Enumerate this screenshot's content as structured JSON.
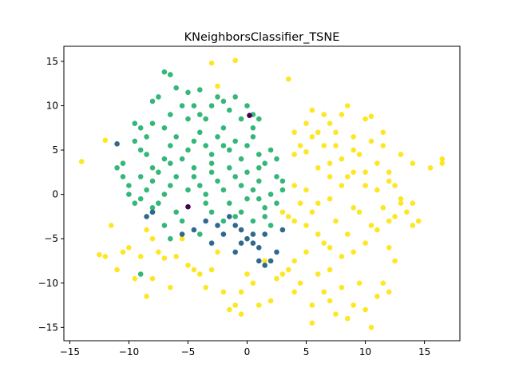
{
  "chart_data": {
    "type": "scatter",
    "title": "KNeighborsClassifier_TSNE",
    "xlabel": "",
    "ylabel": "",
    "xlim": [
      -15.5,
      18.0
    ],
    "ylim": [
      -16.5,
      16.7
    ],
    "xticks": [
      -15,
      -10,
      -5,
      0,
      5,
      10,
      15
    ],
    "yticks": [
      -15,
      -10,
      -5,
      0,
      5,
      10,
      15
    ],
    "grid": false,
    "legend": "none",
    "series": [
      {
        "color": "#fde725",
        "points": [
          [
            -14.0,
            3.7
          ],
          [
            -12.0,
            6.1
          ],
          [
            -12.5,
            -6.8
          ],
          [
            -12.0,
            -7.0
          ],
          [
            -11.5,
            -3.5
          ],
          [
            -11.0,
            -8.5
          ],
          [
            -10.5,
            -6.5
          ],
          [
            -10.0,
            -6.0
          ],
          [
            -9.5,
            -9.5
          ],
          [
            -9.0,
            -7.0
          ],
          [
            -8.5,
            -4.0
          ],
          [
            -8.5,
            -11.5
          ],
          [
            -8.0,
            -9.5
          ],
          [
            -8.0,
            -5.0
          ],
          [
            -7.5,
            -6.5
          ],
          [
            -7.0,
            -7.2
          ],
          [
            -6.5,
            -10.5
          ],
          [
            -6.0,
            -7.0
          ],
          [
            -5.5,
            -5.0
          ],
          [
            -5.0,
            -8.0
          ],
          [
            -4.5,
            -8.5
          ],
          [
            -4.0,
            -9.0
          ],
          [
            -3.5,
            -10.5
          ],
          [
            -3.0,
            -8.5
          ],
          [
            -2.5,
            -6.5
          ],
          [
            -2.0,
            -11.0
          ],
          [
            -1.5,
            -13.0
          ],
          [
            -1.0,
            -12.5
          ],
          [
            -0.5,
            -11.0
          ],
          [
            -0.5,
            -13.5
          ],
          [
            0.0,
            -9.0
          ],
          [
            0.5,
            -10.0
          ],
          [
            1.0,
            -12.5
          ],
          [
            1.5,
            -7.5
          ],
          [
            2.0,
            -12.0
          ],
          [
            2.5,
            -9.5
          ],
          [
            3.0,
            -9.0
          ],
          [
            3.5,
            -8.5
          ],
          [
            4.0,
            -7.5
          ],
          [
            4.0,
            -11.0
          ],
          [
            4.5,
            -10.0
          ],
          [
            5.0,
            -6.5
          ],
          [
            5.5,
            -12.5
          ],
          [
            5.5,
            -14.5
          ],
          [
            6.0,
            -9.0
          ],
          [
            6.5,
            -11.0
          ],
          [
            7.0,
            -12.0
          ],
          [
            7.0,
            -8.5
          ],
          [
            7.5,
            -13.5
          ],
          [
            8.0,
            -10.5
          ],
          [
            8.5,
            -14.0
          ],
          [
            9.0,
            -12.5
          ],
          [
            9.5,
            -10.0
          ],
          [
            10.0,
            -13.0
          ],
          [
            10.5,
            -15.0
          ],
          [
            11.0,
            -11.5
          ],
          [
            11.5,
            -10.0
          ],
          [
            12.0,
            -11.0
          ],
          [
            12.5,
            -7.5
          ],
          [
            12.0,
            -6.0
          ],
          [
            -3.0,
            14.8
          ],
          [
            -1.0,
            15.1
          ],
          [
            -2.5,
            12.2
          ],
          [
            3.5,
            13.0
          ],
          [
            4.0,
            7.0
          ],
          [
            4.5,
            5.5
          ],
          [
            4.0,
            4.5
          ],
          [
            5.0,
            8.0
          ],
          [
            5.5,
            9.5
          ],
          [
            6.0,
            7.0
          ],
          [
            6.5,
            5.5
          ],
          [
            7.0,
            8.0
          ],
          [
            7.5,
            5.5
          ],
          [
            8.0,
            9.0
          ],
          [
            8.5,
            10.0
          ],
          [
            9.0,
            6.5
          ],
          [
            9.5,
            4.5
          ],
          [
            10.0,
            8.5
          ],
          [
            10.5,
            6.0
          ],
          [
            11.0,
            3.5
          ],
          [
            11.5,
            5.5
          ],
          [
            12.0,
            2.5
          ],
          [
            13.0,
            4.5
          ],
          [
            14.0,
            3.5
          ],
          [
            15.5,
            3.0
          ],
          [
            16.5,
            4.0
          ],
          [
            16.5,
            3.5
          ],
          [
            5.0,
            4.8
          ],
          [
            6.0,
            3.0
          ],
          [
            7.0,
            2.0
          ],
          [
            8.0,
            4.0
          ],
          [
            9.0,
            2.5
          ],
          [
            10.0,
            1.0
          ],
          [
            11.0,
            0.5
          ],
          [
            12.0,
            1.5
          ],
          [
            13.0,
            -0.5
          ],
          [
            14.0,
            -1.0
          ],
          [
            14.5,
            -3.0
          ],
          [
            13.5,
            -2.0
          ],
          [
            12.5,
            -2.5
          ],
          [
            11.5,
            -1.5
          ],
          [
            10.5,
            -3.5
          ],
          [
            9.5,
            -2.0
          ],
          [
            8.5,
            -4.5
          ],
          [
            7.5,
            -3.0
          ],
          [
            6.5,
            -5.5
          ],
          [
            5.5,
            -2.0
          ],
          [
            4.5,
            -1.0
          ],
          [
            3.5,
            -2.5
          ],
          [
            3.0,
            -2.0
          ],
          [
            4.0,
            1.0
          ],
          [
            5.0,
            0.5
          ],
          [
            6.0,
            -1.0
          ],
          [
            7.0,
            -0.5
          ],
          [
            8.0,
            1.0
          ],
          [
            9.0,
            -1.5
          ],
          [
            10.0,
            -5.5
          ],
          [
            9.0,
            -6.5
          ],
          [
            8.0,
            -7.0
          ],
          [
            7.0,
            -6.0
          ],
          [
            6.0,
            -4.5
          ],
          [
            5.0,
            -3.5
          ],
          [
            4.0,
            -3.0
          ],
          [
            11.0,
            -4.0
          ],
          [
            12.0,
            -3.0
          ],
          [
            13.0,
            -1.0
          ],
          [
            14.0,
            -3.5
          ],
          [
            10.5,
            8.8
          ],
          [
            6.5,
            9.0
          ],
          [
            7.5,
            7.0
          ],
          [
            5.5,
            6.5
          ],
          [
            9.0,
            5.0
          ],
          [
            11.5,
            7.0
          ],
          [
            12.5,
            1.0
          ],
          [
            10.0,
            2.5
          ],
          [
            8.5,
            2.0
          ],
          [
            7.0,
            3.5
          ]
        ]
      },
      {
        "color": "#35b779",
        "points": [
          [
            -11.0,
            3.0
          ],
          [
            -10.5,
            2.0
          ],
          [
            -10.0,
            1.0
          ],
          [
            -9.5,
            8.0
          ],
          [
            -9.0,
            7.5
          ],
          [
            -8.5,
            6.5
          ],
          [
            -8.0,
            10.5
          ],
          [
            -7.5,
            11.0
          ],
          [
            -7.0,
            13.8
          ],
          [
            -6.5,
            13.5
          ],
          [
            -6.5,
            9.0
          ],
          [
            -6.0,
            12.0
          ],
          [
            -5.5,
            10.0
          ],
          [
            -5.0,
            11.5
          ],
          [
            -4.5,
            10.0
          ],
          [
            -4.0,
            9.0
          ],
          [
            -3.5,
            8.5
          ],
          [
            -3.0,
            10.0
          ],
          [
            -2.5,
            11.0
          ],
          [
            -2.0,
            10.5
          ],
          [
            -1.5,
            9.5
          ],
          [
            -1.0,
            11.0
          ],
          [
            -0.5,
            8.5
          ],
          [
            0.0,
            10.0
          ],
          [
            0.5,
            9.0
          ],
          [
            1.0,
            8.5
          ],
          [
            -9.5,
            6.0
          ],
          [
            -9.0,
            5.0
          ],
          [
            -8.5,
            4.5
          ],
          [
            -8.0,
            3.0
          ],
          [
            -7.5,
            2.5
          ],
          [
            -7.0,
            4.0
          ],
          [
            -6.5,
            5.5
          ],
          [
            -6.0,
            6.5
          ],
          [
            -5.5,
            4.0
          ],
          [
            -5.0,
            5.0
          ],
          [
            -4.5,
            6.0
          ],
          [
            -4.0,
            7.0
          ],
          [
            -3.5,
            5.5
          ],
          [
            -3.0,
            4.5
          ],
          [
            -2.5,
            6.5
          ],
          [
            -2.0,
            7.5
          ],
          [
            -1.5,
            5.0
          ],
          [
            -1.0,
            6.0
          ],
          [
            -0.5,
            4.0
          ],
          [
            0.0,
            5.5
          ],
          [
            0.5,
            6.5
          ],
          [
            1.0,
            4.5
          ],
          [
            1.5,
            3.5
          ],
          [
            2.0,
            5.0
          ],
          [
            2.5,
            2.0
          ],
          [
            3.0,
            1.5
          ],
          [
            -10.0,
            0.0
          ],
          [
            -9.5,
            -1.0
          ],
          [
            -9.0,
            -0.5
          ],
          [
            -8.5,
            0.5
          ],
          [
            -8.0,
            1.5
          ],
          [
            -7.5,
            -1.0
          ],
          [
            -7.0,
            0.0
          ],
          [
            -6.5,
            1.0
          ],
          [
            -6.0,
            -2.0
          ],
          [
            -5.5,
            -3.0
          ],
          [
            -5.0,
            0.5
          ],
          [
            -4.5,
            2.0
          ],
          [
            -4.0,
            1.0
          ],
          [
            -3.5,
            0.0
          ],
          [
            -3.0,
            2.5
          ],
          [
            -2.5,
            1.5
          ],
          [
            -2.0,
            0.5
          ],
          [
            -1.5,
            -1.0
          ],
          [
            -1.0,
            2.0
          ],
          [
            -0.5,
            1.0
          ],
          [
            0.0,
            -0.5
          ],
          [
            0.5,
            0.5
          ],
          [
            1.0,
            1.5
          ],
          [
            1.5,
            -1.5
          ],
          [
            2.0,
            0.0
          ],
          [
            2.5,
            -1.0
          ],
          [
            3.0,
            0.5
          ],
          [
            -9.0,
            -9.0
          ],
          [
            -8.0,
            -2.0
          ],
          [
            -7.0,
            -3.5
          ],
          [
            -6.5,
            -5.0
          ],
          [
            -4.0,
            -4.5
          ],
          [
            -3.0,
            -2.0
          ],
          [
            -2.0,
            -3.0
          ],
          [
            -1.0,
            -2.5
          ],
          [
            0.5,
            -3.0
          ],
          [
            1.5,
            -2.5
          ],
          [
            2.0,
            -3.5
          ],
          [
            -10.5,
            3.5
          ],
          [
            -8.0,
            8.0
          ],
          [
            -7.0,
            7.5
          ],
          [
            -5.0,
            8.5
          ],
          [
            -4.0,
            11.8
          ],
          [
            -3.0,
            3.5
          ],
          [
            -1.5,
            3.0
          ],
          [
            0.0,
            2.5
          ],
          [
            1.0,
            3.0
          ],
          [
            2.5,
            4.0
          ],
          [
            -6.0,
            2.0
          ],
          [
            -4.5,
            3.0
          ],
          [
            -2.0,
            5.5
          ],
          [
            0.5,
            7.5
          ],
          [
            -9.0,
            2.0
          ],
          [
            -8.0,
            -1.5
          ],
          [
            -6.5,
            3.5
          ],
          [
            -3.5,
            -1.0
          ],
          [
            -0.5,
            -2.0
          ],
          [
            1.0,
            -0.5
          ]
        ]
      },
      {
        "color": "#31688e",
        "points": [
          [
            -8.5,
            -2.5
          ],
          [
            -8.0,
            -2.0
          ],
          [
            -5.5,
            -4.5
          ],
          [
            -4.5,
            -4.0
          ],
          [
            -3.5,
            -3.0
          ],
          [
            -3.0,
            -5.5
          ],
          [
            -2.5,
            -3.5
          ],
          [
            -2.0,
            -4.5
          ],
          [
            -1.5,
            -2.5
          ],
          [
            -1.0,
            -3.5
          ],
          [
            -1.0,
            -6.5
          ],
          [
            -0.5,
            -4.0
          ],
          [
            0.0,
            -5.0
          ],
          [
            0.5,
            -5.5
          ],
          [
            1.0,
            -6.0
          ],
          [
            1.0,
            -7.5
          ],
          [
            1.5,
            -8.0
          ],
          [
            2.0,
            -7.5
          ],
          [
            2.5,
            -6.5
          ],
          [
            3.0,
            -4.0
          ],
          [
            -11.0,
            5.7
          ],
          [
            0.5,
            -4.5
          ],
          [
            -0.5,
            -5.5
          ],
          [
            1.5,
            -4.5
          ]
        ]
      },
      {
        "color": "#440154",
        "points": [
          [
            0.2,
            8.9
          ],
          [
            -5.0,
            -1.4
          ]
        ]
      }
    ]
  }
}
